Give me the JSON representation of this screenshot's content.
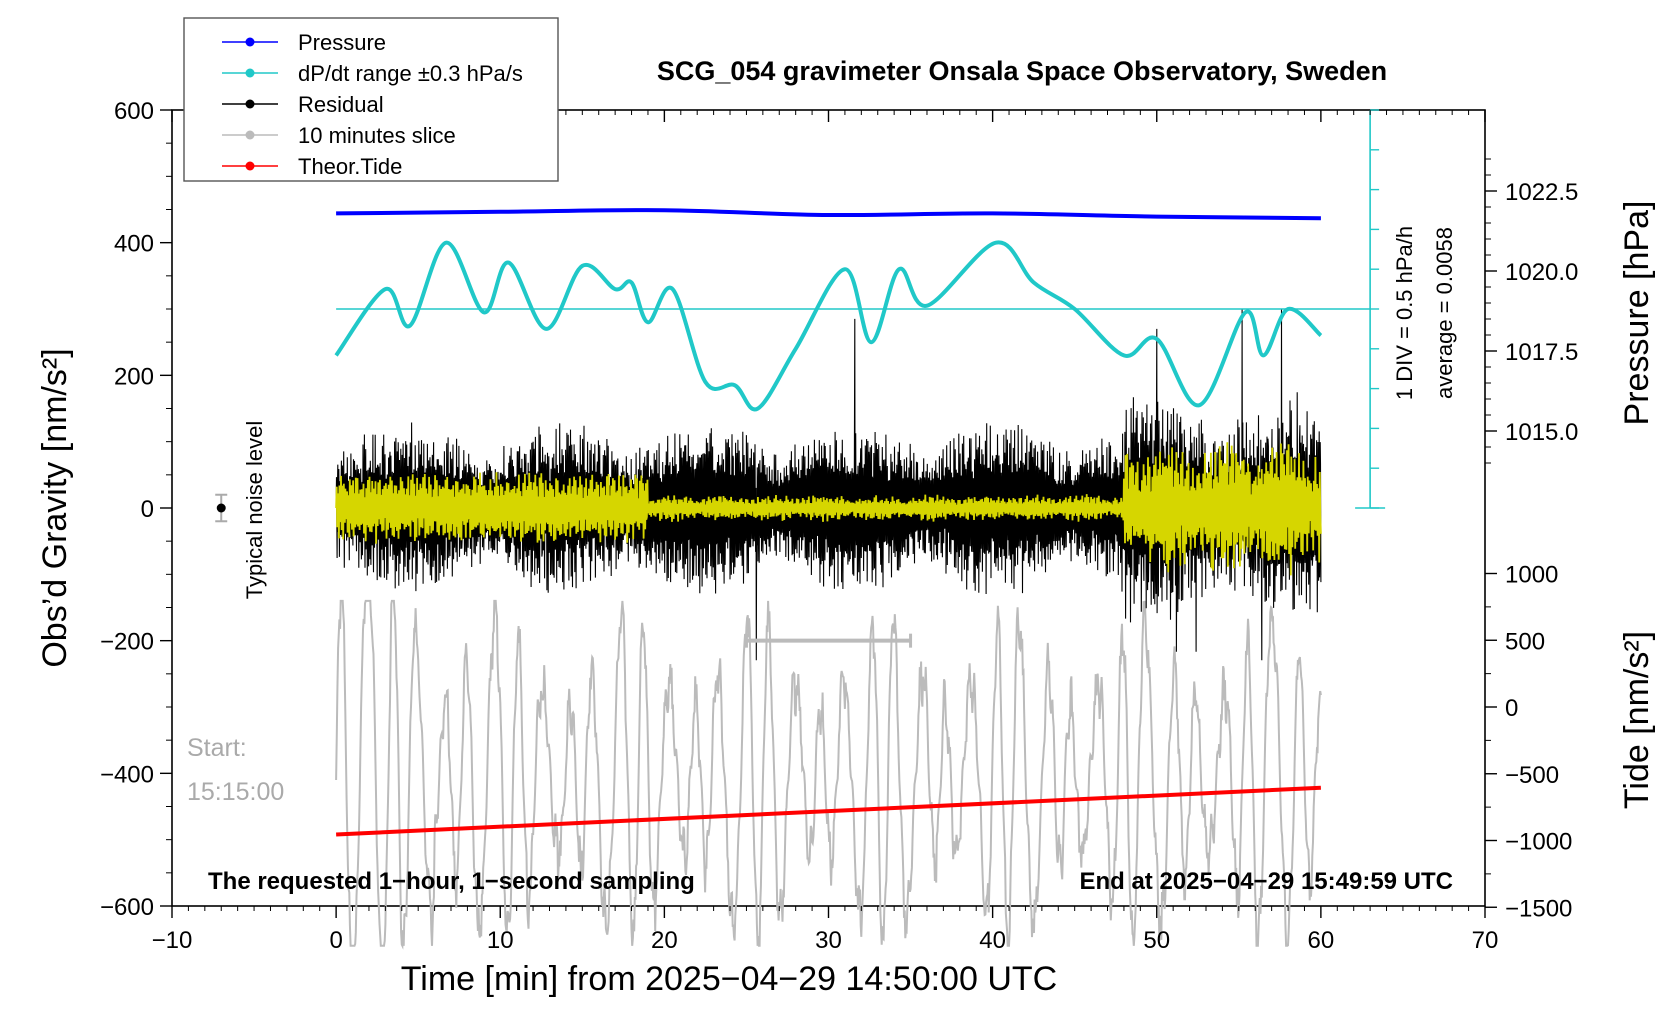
{
  "chart_data": {
    "type": "line",
    "title": "SCG_054 gravimeter Onsala Space Observatory, Sweden",
    "xlabel": "Time [min] from 2025−04−29 14:50:00 UTC",
    "ylabel_left": "Obs’d Gravity [nm/s²]",
    "ylabel_right_top": "Pressure [hPa]",
    "ylabel_right_bottom": "Tide [nm/s²]",
    "xlim": [
      -10,
      70
    ],
    "ylim_left": [
      -600,
      600
    ],
    "x_ticks": [
      "−10",
      "0",
      "10",
      "20",
      "30",
      "40",
      "50",
      "60",
      "70"
    ],
    "y_left_ticks": [
      "−600",
      "−400",
      "−200",
      "0",
      "200",
      "400",
      "600"
    ],
    "pressure_ticks": [
      "1015.0",
      "1017.5",
      "1020.0",
      "1022.5"
    ],
    "tide_ticks": [
      "−1500",
      "−1000",
      "−500",
      "0",
      "500",
      "1000"
    ],
    "dpdt_scale_label": "1 DIV = 0.5 hPa/h",
    "dpdt_average_label": "average = 0.0058",
    "legend": {
      "placement": "top-left",
      "entries": [
        {
          "name": "Pressure",
          "color": "#0000ff"
        },
        {
          "name": "dP/dt range ±0.3 hPa/s",
          "color": "#20c8c8"
        },
        {
          "name": "Residual",
          "color": "#000000"
        },
        {
          "name": "10 minutes slice",
          "color": "#bbbbbb"
        },
        {
          "name": "Theor.Tide",
          "color": "#ff0000"
        }
      ]
    },
    "annotations": {
      "noise": "Typical noise level",
      "start_label": "Start:",
      "start_time": "15:15:00",
      "footer_left": "The requested 1−hour, 1−second sampling",
      "footer_right": "End at 2025−04−29 15:49:59 UTC"
    },
    "slice_window_min": [
      25,
      35
    ],
    "series": [
      {
        "name": "Pressure",
        "axis": "pressure_hPa",
        "color": "#0000ff",
        "x": [
          0,
          10,
          20,
          30,
          40,
          50,
          60
        ],
        "y": [
          1021.8,
          1021.85,
          1021.9,
          1021.75,
          1021.8,
          1021.7,
          1021.65
        ]
      },
      {
        "name": "dP/dt range ±0.3 hPa/s",
        "axis": "gravity_screen",
        "color": "#20c8c8",
        "x": [
          0,
          3,
          4.5,
          6.7,
          9,
          10.5,
          12.8,
          15,
          17,
          18,
          19,
          20.5,
          22.5,
          24.3,
          25.7,
          28,
          31,
          32.6,
          34.3,
          36,
          40.2,
          42.5,
          45,
          48,
          50,
          52.6,
          55.4,
          56.5,
          58,
          60
        ],
        "y": [
          230,
          330,
          275,
          400,
          295,
          370,
          270,
          365,
          330,
          340,
          280,
          330,
          190,
          185,
          150,
          240,
          360,
          250,
          360,
          305,
          400,
          340,
          300,
          230,
          255,
          155,
          295,
          230,
          300,
          260
        ]
      },
      {
        "name": "Residual",
        "axis": "gravity_nm_s2",
        "color": "#000000",
        "description_values": {
          "typical_min": -150,
          "typical_max": 150,
          "extreme_min": -255,
          "extreme_max": 300
        }
      },
      {
        "name": "10 minutes slice",
        "axis": "gravity_screen",
        "color": "#bbbbbb",
        "y_range": [
          -540,
          -160
        ]
      },
      {
        "name": "Theor.Tide",
        "axis": "tide_nm_s2",
        "color": "#ff0000",
        "x": [
          0,
          60
        ],
        "y": [
          -955,
          -605
        ]
      }
    ],
    "noise_level": {
      "x": -7,
      "y": 0,
      "err": 20
    }
  }
}
